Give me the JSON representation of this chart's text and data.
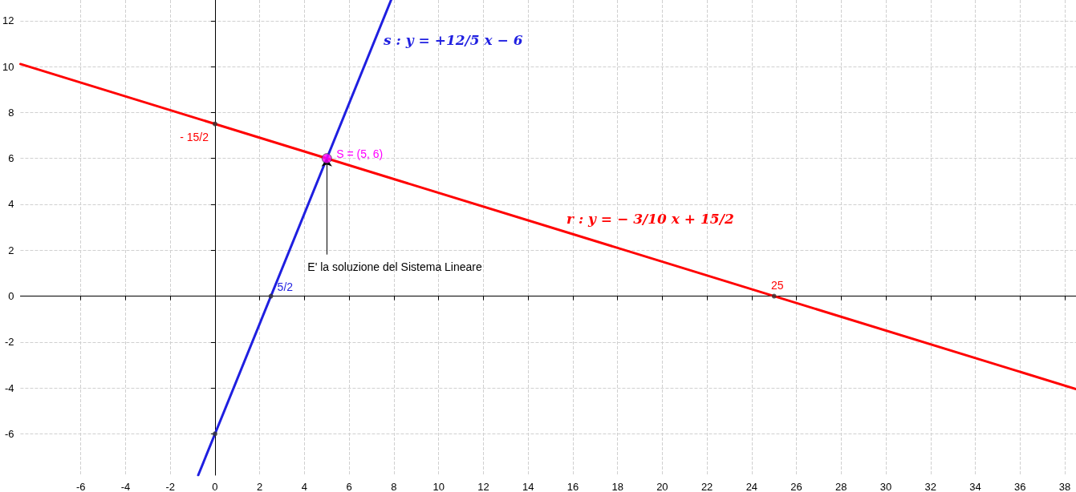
{
  "chart_data": {
    "type": "line",
    "xlim": [
      -8.7,
      38.5
    ],
    "ylim": [
      -7.8,
      12.9
    ],
    "xticks": [
      -6,
      -4,
      -2,
      0,
      2,
      4,
      6,
      8,
      10,
      12,
      14,
      16,
      18,
      20,
      22,
      24,
      26,
      28,
      30,
      32,
      34,
      36,
      38
    ],
    "yticks": [
      -6,
      -4,
      -2,
      0,
      2,
      4,
      6,
      8,
      10,
      12
    ],
    "grid": true,
    "line_style": "solid",
    "series": [
      {
        "color": "#ff0000",
        "x": [
          -8.7,
          38.5
        ],
        "values": [
          10.11,
          -4.05
        ]
      },
      {
        "color": "#1f1fe0",
        "x": [
          -0.75,
          7.875
        ],
        "values": [
          -7.8,
          12.9
        ]
      },
      {
        "type": "scatter",
        "color": "#333333",
        "x": [
          0,
          25,
          2.5,
          0
        ],
        "values": [
          7.5,
          0,
          0,
          -6
        ]
      },
      {
        "type": "scatter",
        "color": "#ff00ff",
        "x": [
          5
        ],
        "values": [
          6
        ]
      }
    ],
    "annotations": [
      "s : y = +12/5 x − 6",
      "r : y = − 3/10 x + 15/2",
      {
        "text": "E' la soluzione del Sistema Lineare",
        "x": 5,
        "y": 6
      },
      {
        "text": "- 15/2",
        "x": 0,
        "y": 7.5
      },
      {
        "text": "5/2",
        "x": 2.5,
        "y": 0
      },
      {
        "text": "25",
        "x": 25,
        "y": 0
      },
      {
        "text": "S = (5, 6)",
        "x": 5,
        "y": 6
      }
    ]
  }
}
